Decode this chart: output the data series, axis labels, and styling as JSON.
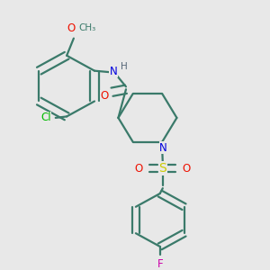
{
  "background_color": "#e8e8e8",
  "bond_color": "#3a7a6a",
  "bond_width": 1.6,
  "atom_colors": {
    "Cl": "#00bb00",
    "O": "#ee1100",
    "N": "#0000dd",
    "H": "#556677",
    "S": "#cccc00",
    "F": "#cc00aa",
    "C": "#3a7a6a"
  }
}
